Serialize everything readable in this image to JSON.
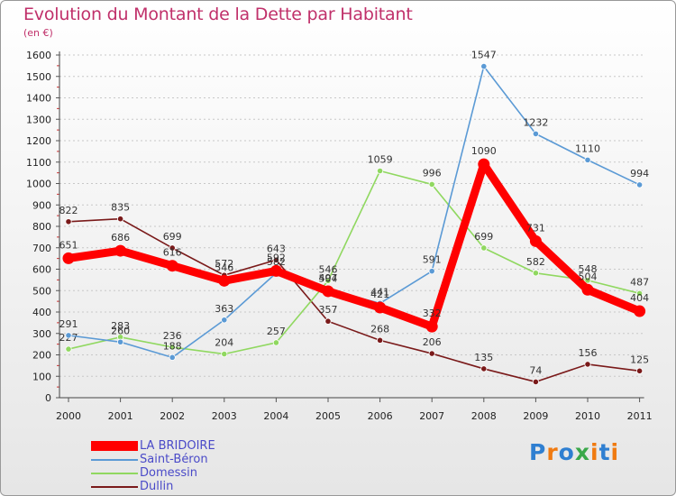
{
  "title": "Evolution du Montant de la Dette par Habitant",
  "subtitle": "(en €)",
  "logo": {
    "text": "Proxiti",
    "letter_colors": [
      "#2f7fd1",
      "#f07a10",
      "#2f7fd1",
      "#3aa84a",
      "#f07a10",
      "#2f7fd1",
      "#f07a10"
    ]
  },
  "chart_data": {
    "type": "line",
    "categories": [
      "2000",
      "2001",
      "2002",
      "2003",
      "2004",
      "2005",
      "2006",
      "2007",
      "2008",
      "2009",
      "2010",
      "2011"
    ],
    "ylim": [
      0,
      1600
    ],
    "yticks": [
      0,
      100,
      200,
      300,
      400,
      500,
      600,
      700,
      800,
      900,
      1000,
      1100,
      1200,
      1300,
      1400,
      1500,
      1600
    ],
    "grid": "horizontal dashed",
    "legend_position": "bottom-left",
    "series": [
      {
        "name": "Dullin",
        "color": "#7a1a1a",
        "values": [
          822,
          835,
          699,
          572,
          643,
          357,
          268,
          206,
          135,
          74,
          156,
          125
        ],
        "labels": [
          "822",
          "835",
          "699",
          "572",
          "643",
          "357",
          "268",
          "206",
          "135",
          "74",
          "156",
          "125"
        ]
      },
      {
        "name": "Domessin",
        "color": "#90d860",
        "values": [
          227,
          283,
          236,
          204,
          257,
          546,
          1059,
          996,
          699,
          582,
          548,
          487
        ],
        "labels": [
          "227",
          "283",
          "236",
          "204",
          "257",
          "546",
          "1059",
          "996",
          "699",
          "582",
          "548",
          "487"
        ]
      },
      {
        "name": "Saint-Béron",
        "color": "#5b9ad5",
        "values": [
          291,
          260,
          188,
          363,
          582,
          504,
          441,
          591,
          1547,
          1232,
          1110,
          994
        ],
        "labels": [
          "291",
          "260",
          "188",
          "363",
          "582",
          "504",
          "441",
          "591",
          "1547",
          "1232",
          "1110",
          "994"
        ]
      },
      {
        "name": "LA BRIDOIRE",
        "color": "#ff0000",
        "values": [
          651,
          686,
          616,
          546,
          592,
          497,
          421,
          332,
          1090,
          731,
          504,
          404
        ],
        "labels": [
          "651",
          "686",
          "616",
          "546",
          "592",
          "497",
          "421",
          "332",
          "1090",
          "731",
          "504",
          "404"
        ]
      }
    ]
  }
}
